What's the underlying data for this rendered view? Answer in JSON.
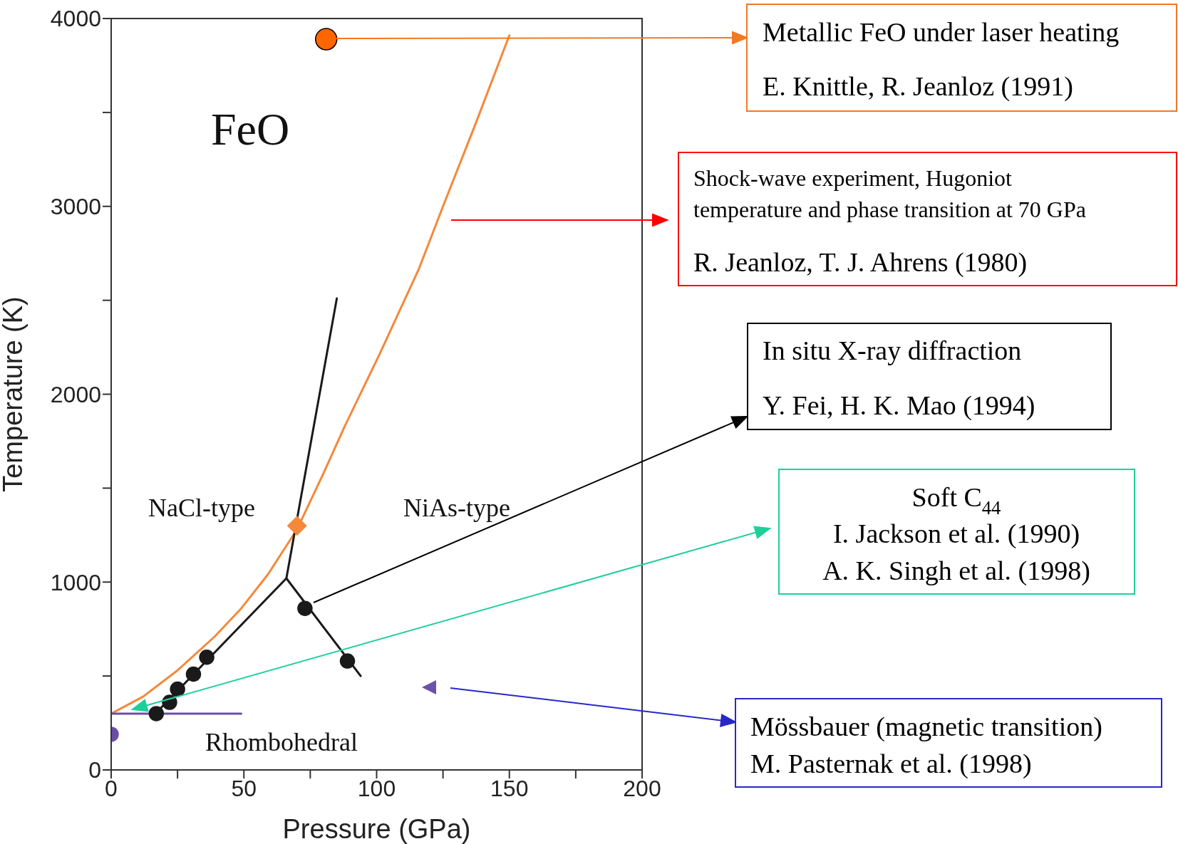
{
  "chart_data": {
    "type": "line",
    "xlabel": "Pressure (GPa)",
    "ylabel": "Temperature (K)",
    "xlim": [
      0,
      200
    ],
    "xticks": [
      0,
      {
        "value": 25,
        "label": null
      },
      50,
      {
        "value": 75,
        "label": null
      },
      100,
      {
        "value": 125,
        "label": null
      },
      150,
      {
        "value": 175,
        "label": null
      },
      200
    ],
    "ylim": [
      0,
      4000
    ],
    "yticks": [
      0,
      {
        "value": 500,
        "label": null
      },
      1000,
      {
        "value": 1500,
        "label": null
      },
      2000,
      {
        "value": 2500,
        "label": null
      },
      3000,
      {
        "value": 3500,
        "label": null
      },
      4000
    ],
    "grid": false,
    "legend": false,
    "series": [
      {
        "color": "#f5883a",
        "x": [
          0,
          12,
          25,
          39,
          49,
          59,
          70,
          80,
          88,
          101,
          116,
          125,
          137,
          150
        ],
        "values": [
          300,
          390,
          530,
          710,
          860,
          1040,
          1280,
          1580,
          1830,
          2210,
          2670,
          3000,
          3430,
          3910
        ]
      },
      {
        "color": "#1a1a1a",
        "x": [
          16,
          66,
          85
        ],
        "values": [
          290,
          1020,
          2510
        ]
      },
      {
        "color": "#1a1a1a",
        "x": [
          66,
          94
        ],
        "values": [
          1020,
          500
        ]
      },
      {
        "color": "#6a4fa8",
        "x": [
          0,
          49
        ],
        "values": [
          300,
          300
        ]
      },
      {
        "type": "scatter",
        "marker": "circle",
        "color": "#1a1a1a",
        "x": [
          17,
          22,
          25,
          31,
          36,
          73,
          89
        ],
        "values": [
          300,
          360,
          430,
          510,
          600,
          860,
          580
        ]
      },
      {
        "type": "scatter",
        "marker": "circle",
        "color": "#6a4fa8",
        "x": [
          0
        ],
        "values": [
          190
        ]
      },
      {
        "type": "scatter",
        "marker": "diamond",
        "color": "#f5883a",
        "x": [
          70
        ],
        "values": [
          1300
        ]
      },
      {
        "type": "scatter",
        "marker": "circle",
        "color": "#ff6600",
        "x": [
          81
        ],
        "values": [
          3890
        ]
      },
      {
        "type": "scatter",
        "marker": "triangle",
        "color": "#6a52a8",
        "x": [
          120
        ],
        "values": [
          440
        ]
      }
    ],
    "annotations": [
      "FeO",
      "NaCl-type",
      "NiAs-type",
      "Rhombohedral",
      "Metallic FeO under laser heating\nE. Knittle, R. Jeanloz  (1991)",
      "Shock-wave experiment, Hugoniot\ntemperature and phase transition at 70 GPa\nR. Jeanloz, T. J. Ahrens  (1980)",
      "In situ X-ray diffraction\nY. Fei, H. K. Mao (1994)",
      "Soft C$_{44}$\nI. Jackson et al. (1990)\nA. K. Singh et al. (1998)",
      "Mössbauer (magnetic transition)\nM. Pasternak et al. (1998)"
    ]
  }
}
